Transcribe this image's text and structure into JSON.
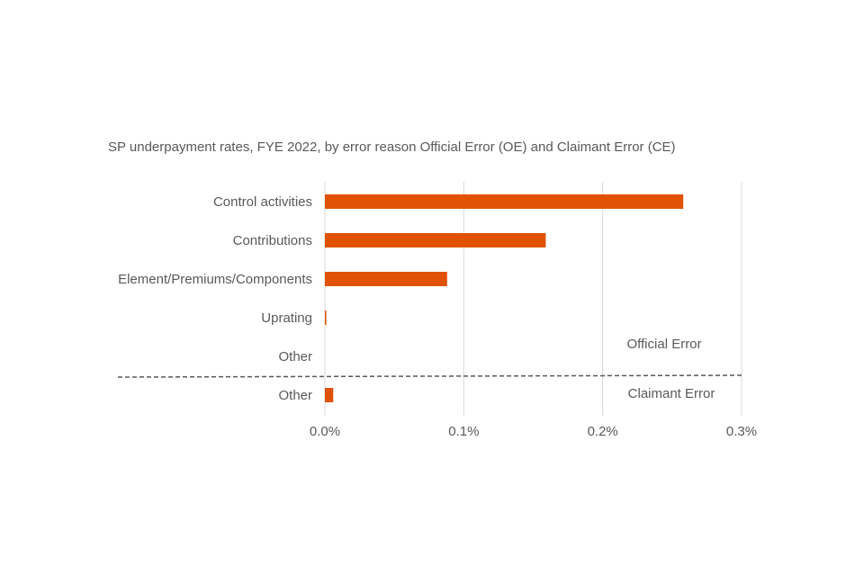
{
  "chart_data": {
    "type": "bar",
    "orientation": "horizontal",
    "title": "SP underpayment rates, FYE 2022, by error reason Official Error (OE) and Claimant Error (CE)",
    "xlabel": "",
    "ylabel": "",
    "xlim": [
      0,
      0.3
    ],
    "x_ticks": [
      "0.0%",
      "0.1%",
      "0.2%",
      "0.3%"
    ],
    "grid": true,
    "legend": "none",
    "bar_color": "#E05206",
    "categories": [
      "Control activities",
      "Contributions",
      "Element/Premiums/Components",
      "Uprating",
      "Other",
      "Other"
    ],
    "values": [
      0.258,
      0.159,
      0.088,
      0.001,
      0,
      0.006
    ],
    "groups": [
      {
        "name": "Official Error",
        "categories": [
          "Control activities",
          "Contributions",
          "Element/Premiums/Components",
          "Uprating",
          "Other"
        ]
      },
      {
        "name": "Claimant Error",
        "categories": [
          "Other"
        ]
      }
    ]
  }
}
